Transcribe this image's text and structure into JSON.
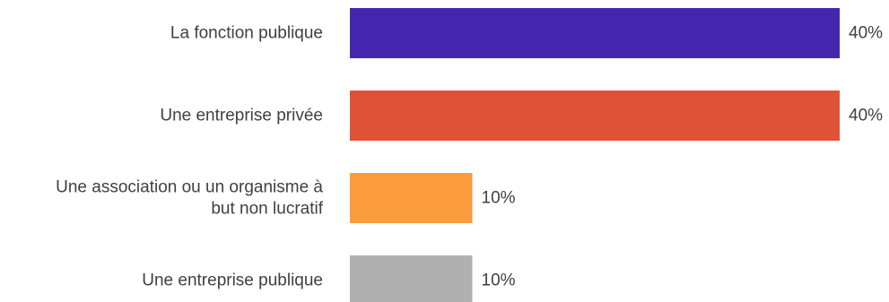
{
  "chart_data": {
    "type": "bar",
    "orientation": "horizontal",
    "categories": [
      [
        "La fonction publique"
      ],
      [
        "Une entreprise privée"
      ],
      [
        "Une association ou un organisme à",
        "but non lucratif"
      ],
      [
        "Une entreprise publique"
      ]
    ],
    "values": [
      40,
      40,
      10,
      10
    ],
    "value_labels": [
      "40%",
      "40%",
      "10%",
      "10%"
    ],
    "colors": [
      "#4526ae",
      "#e05238",
      "#fb9b3e",
      "#b0b0b0"
    ],
    "xlim": [
      0,
      40
    ],
    "grid": false,
    "legend": "none"
  }
}
